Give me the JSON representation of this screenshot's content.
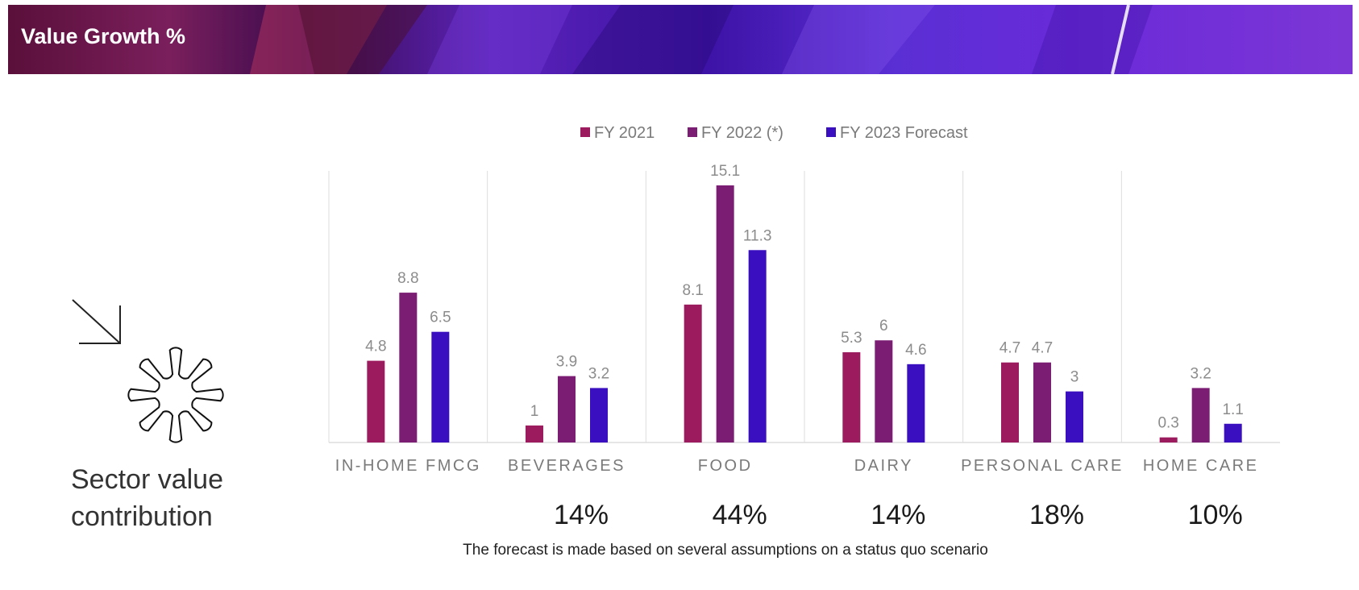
{
  "header": {
    "title": "Value Growth %"
  },
  "side_panel": {
    "label": "Sector value contribution",
    "icons": [
      "arrow-down-right-icon",
      "asterisk-flower-icon"
    ]
  },
  "footnote": "The forecast is made based on several assumptions on a status quo scenario",
  "colors": {
    "fy2021": "#9b1b5e",
    "fy2022": "#7c1d74",
    "fy2023": "#3a0fbf",
    "axis": "#dddddd",
    "label": "#8c8c8c"
  },
  "chart_data": {
    "type": "bar",
    "title": "",
    "xlabel": "",
    "ylabel": "",
    "ylim": [
      0,
      16.5
    ],
    "legend_position": "top-center",
    "grid": false,
    "categories": [
      "IN-HOME FMCG",
      "BEVERAGES",
      "FOOD",
      "DAIRY",
      "PERSONAL CARE",
      "HOME CARE"
    ],
    "series": [
      {
        "name": "FY 2021",
        "values": [
          4.8,
          1,
          8.1,
          5.3,
          4.7,
          0.3
        ]
      },
      {
        "name": "FY 2022 (*)",
        "values": [
          8.8,
          3.9,
          15.1,
          6,
          4.7,
          3.2
        ]
      },
      {
        "name": "FY 2023 Forecast",
        "values": [
          6.5,
          3.2,
          11.3,
          4.6,
          3,
          1.1
        ]
      }
    ],
    "contributions": [
      "",
      "14%",
      "44%",
      "14%",
      "18%",
      "10%"
    ]
  }
}
